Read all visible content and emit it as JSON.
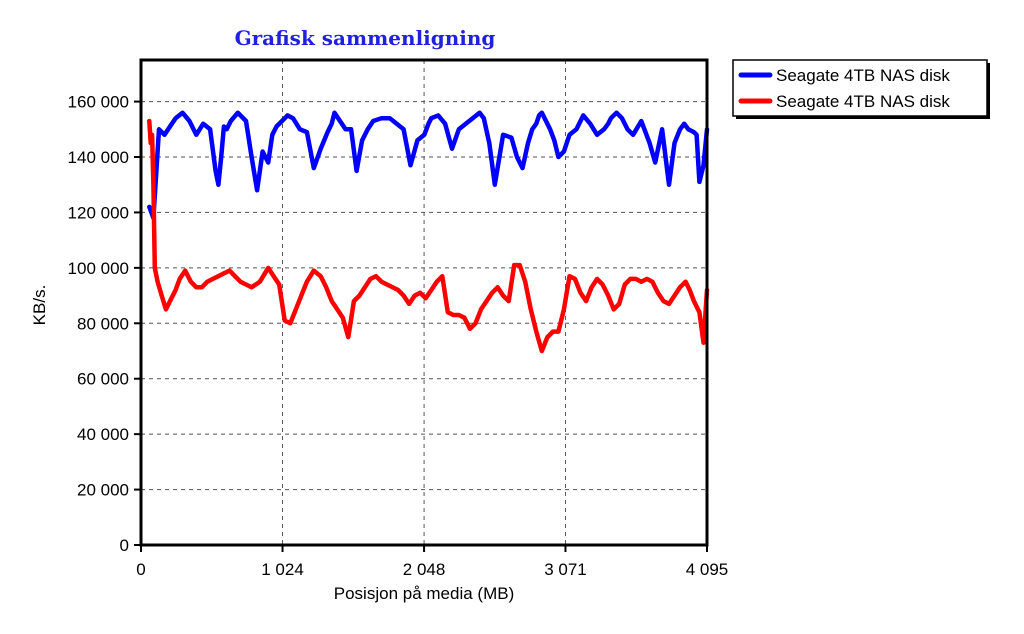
{
  "chart_data": {
    "type": "line",
    "title": "Grafisk sammenligning",
    "xlabel": "Posisjon på media (MB)",
    "ylabel": "KB/s.",
    "xlim": [
      0,
      4095
    ],
    "ylim": [
      0,
      175000
    ],
    "x_ticks": [
      0,
      1024,
      2048,
      3071,
      4095
    ],
    "x_tick_labels": [
      "0",
      "1 024",
      "2 048",
      "3 071",
      "4 095"
    ],
    "y_ticks": [
      0,
      20000,
      40000,
      60000,
      80000,
      100000,
      120000,
      140000,
      160000
    ],
    "y_tick_labels": [
      "0",
      "20 000",
      "40 000",
      "60 000",
      "80 000",
      "100 000",
      "120 000",
      "140 000",
      "160 000"
    ],
    "grid": true,
    "legend_position": "right",
    "series": [
      {
        "name": "Seagate 4TB NAS disk",
        "color": "#0000ff",
        "x": [
          60,
          90,
          130,
          170,
          210,
          250,
          300,
          350,
          400,
          450,
          500,
          540,
          560,
          580,
          600,
          620,
          650,
          700,
          760,
          800,
          840,
          880,
          900,
          920,
          950,
          980,
          1020,
          1060,
          1100,
          1150,
          1200,
          1250,
          1300,
          1350,
          1380,
          1400,
          1440,
          1480,
          1520,
          1560,
          1600,
          1640,
          1680,
          1740,
          1800,
          1850,
          1900,
          1950,
          2000,
          2050,
          2080,
          2100,
          2150,
          2200,
          2250,
          2300,
          2350,
          2400,
          2450,
          2480,
          2520,
          2560,
          2620,
          2680,
          2720,
          2760,
          2800,
          2830,
          2860,
          2880,
          2900,
          2930,
          2960,
          2990,
          3020,
          3060,
          3100,
          3150,
          3200,
          3250,
          3300,
          3350,
          3380,
          3400,
          3440,
          3480,
          3520,
          3560,
          3620,
          3680,
          3720,
          3770,
          3820,
          3860,
          3900,
          3930,
          3960,
          4000,
          4020,
          4040,
          4070,
          4095
        ],
        "values": [
          122000,
          118000,
          150000,
          148000,
          151000,
          154000,
          156000,
          153000,
          148000,
          152000,
          150000,
          135000,
          130000,
          140000,
          151000,
          150000,
          153000,
          156000,
          153000,
          140000,
          128000,
          142000,
          140000,
          138000,
          148000,
          151000,
          153000,
          155000,
          154000,
          150000,
          149000,
          136000,
          143000,
          149000,
          152000,
          156000,
          153000,
          150000,
          150000,
          135000,
          146000,
          150000,
          153000,
          154000,
          154000,
          152000,
          150000,
          137000,
          146000,
          148000,
          152000,
          154000,
          155000,
          152000,
          143000,
          150000,
          152000,
          154000,
          156000,
          154000,
          145000,
          130000,
          148000,
          147000,
          140000,
          136000,
          145000,
          150000,
          152000,
          155000,
          156000,
          153000,
          150000,
          146000,
          140000,
          142000,
          148000,
          150000,
          155000,
          152000,
          148000,
          150000,
          152000,
          154000,
          156000,
          154000,
          150000,
          148000,
          153000,
          145000,
          138000,
          150000,
          130000,
          145000,
          150000,
          152000,
          150000,
          149000,
          148000,
          131000,
          137000,
          150000
        ]
      },
      {
        "name": "Seagate 4TB NAS disk",
        "color": "#ff0000",
        "x": [
          60,
          70,
          80,
          90,
          100,
          120,
          150,
          180,
          210,
          250,
          280,
          320,
          360,
          400,
          440,
          480,
          520,
          560,
          600,
          640,
          680,
          720,
          760,
          800,
          860,
          920,
          960,
          1000,
          1040,
          1080,
          1120,
          1160,
          1200,
          1250,
          1300,
          1340,
          1380,
          1420,
          1460,
          1500,
          1540,
          1580,
          1620,
          1660,
          1700,
          1740,
          1780,
          1820,
          1860,
          1900,
          1940,
          1980,
          2020,
          2060,
          2100,
          2140,
          2180,
          2220,
          2260,
          2300,
          2340,
          2380,
          2420,
          2460,
          2500,
          2540,
          2580,
          2620,
          2660,
          2700,
          2740,
          2780,
          2820,
          2860,
          2900,
          2940,
          2980,
          3020,
          3060,
          3100,
          3140,
          3180,
          3220,
          3260,
          3300,
          3340,
          3380,
          3420,
          3460,
          3500,
          3540,
          3580,
          3620,
          3660,
          3700,
          3740,
          3780,
          3820,
          3860,
          3900,
          3940,
          3970,
          4000,
          4040,
          4070,
          4095
        ],
        "values": [
          153000,
          145000,
          148000,
          130000,
          100000,
          95000,
          90000,
          85000,
          88000,
          92000,
          96000,
          99000,
          95000,
          93000,
          93000,
          95000,
          96000,
          97000,
          98000,
          99000,
          97000,
          95000,
          94000,
          93000,
          95000,
          100000,
          97000,
          94000,
          81000,
          80000,
          85000,
          90000,
          95000,
          99000,
          97000,
          93000,
          88000,
          85000,
          82000,
          75000,
          88000,
          90000,
          93000,
          96000,
          97000,
          95000,
          94000,
          93000,
          92000,
          90000,
          87000,
          90000,
          91000,
          89000,
          92000,
          95000,
          97000,
          84000,
          83000,
          83000,
          82000,
          78000,
          80000,
          85000,
          88000,
          91000,
          93000,
          90000,
          88000,
          101000,
          101000,
          95000,
          85000,
          77000,
          70000,
          75000,
          77000,
          77000,
          85000,
          97000,
          96000,
          91000,
          88000,
          93000,
          96000,
          94000,
          90000,
          85000,
          87000,
          94000,
          96000,
          96000,
          95000,
          96000,
          95000,
          91000,
          88000,
          87000,
          90000,
          93000,
          95000,
          92000,
          88000,
          84000,
          73000,
          92000
        ]
      }
    ]
  }
}
